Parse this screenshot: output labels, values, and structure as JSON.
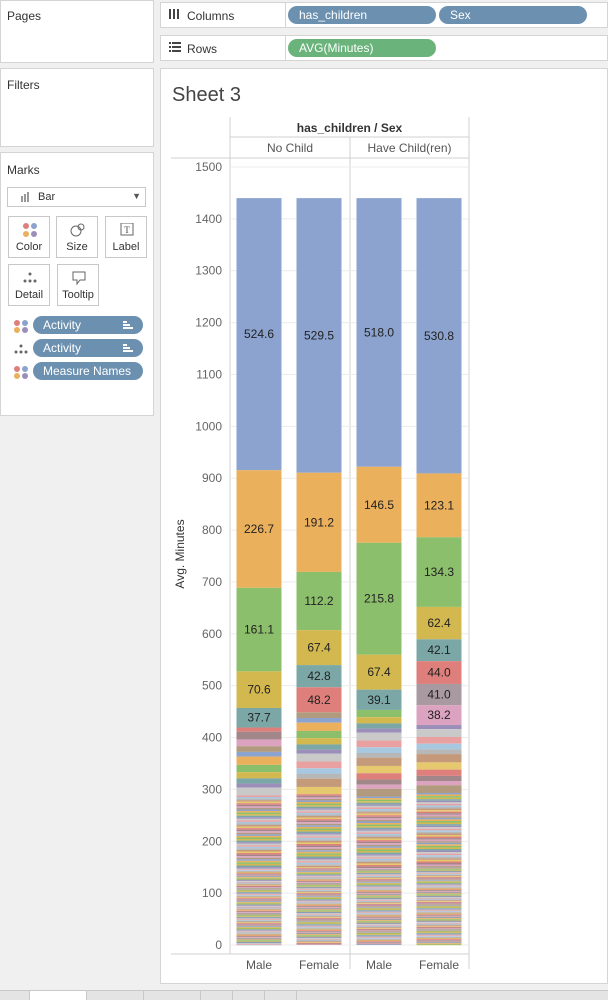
{
  "pages": {
    "title": "Pages"
  },
  "filters": {
    "title": "Filters"
  },
  "marks": {
    "title": "Marks",
    "mark_type": "Bar",
    "buttons": {
      "color": "Color",
      "size": "Size",
      "label": "Label",
      "detail": "Detail",
      "tooltip": "Tooltip"
    },
    "pills": [
      {
        "label": "Activity",
        "icon": "color-dots-icon"
      },
      {
        "label": "Activity",
        "icon": "detail-dots-icon"
      },
      {
        "label": "Measure Names",
        "icon": "color-dots-icon"
      }
    ]
  },
  "shelves": {
    "columns": {
      "label": "Columns",
      "pills": [
        "has_children",
        "Sex"
      ]
    },
    "rows": {
      "label": "Rows",
      "pills": [
        "AVG(Minutes)"
      ]
    }
  },
  "colors": {
    "dimension_pill": "#6b90b0",
    "measure_pill": "#6ab37b"
  },
  "sheet": {
    "title": "Sheet 3"
  },
  "chart_data": {
    "type": "bar",
    "stacked": true,
    "title": "",
    "header_title": "has_children / Sex",
    "column_groups": [
      "No Child",
      "Have Child(ren)"
    ],
    "categories": [
      "Male",
      "Female",
      "Male",
      "Female"
    ],
    "ylabel": "Avg. Minutes",
    "ylim": [
      0,
      1500
    ],
    "yticks": [
      0,
      100,
      200,
      300,
      400,
      500,
      600,
      700,
      800,
      900,
      1000,
      1100,
      1200,
      1300,
      1400,
      1500
    ],
    "total": 1440,
    "labeled_segments": [
      [
        {
          "value": 524.6,
          "color": "#8ba3ce",
          "label": "524.6"
        },
        {
          "value": 226.7,
          "color": "#ebb05c",
          "label": "226.7"
        },
        {
          "value": 161.1,
          "color": "#8cbf6b",
          "label": "161.1"
        },
        {
          "value": 70.6,
          "color": "#d2b84f",
          "label": "70.6"
        },
        {
          "value": 37.7,
          "color": "#7ba8a7",
          "label": "37.7"
        }
      ],
      [
        {
          "value": 529.5,
          "color": "#8ba3ce",
          "label": "529.5"
        },
        {
          "value": 191.2,
          "color": "#ebb05c",
          "label": "191.2"
        },
        {
          "value": 112.2,
          "color": "#8cbf6b",
          "label": "112.2"
        },
        {
          "value": 67.4,
          "color": "#d2b84f",
          "label": "67.4"
        },
        {
          "value": 42.8,
          "color": "#7ba8a7",
          "label": "42.8"
        },
        {
          "value": 48.2,
          "color": "#df7f7b",
          "label": "48.2"
        }
      ],
      [
        {
          "value": 518.0,
          "color": "#8ba3ce",
          "label": "518.0"
        },
        {
          "value": 146.5,
          "color": "#ebb05c",
          "label": "146.5"
        },
        {
          "value": 215.8,
          "color": "#8cbf6b",
          "label": "215.8"
        },
        {
          "value": 67.4,
          "color": "#d2b84f",
          "label": "67.4"
        },
        {
          "value": 39.1,
          "color": "#7ba8a7",
          "label": "39.1"
        }
      ],
      [
        {
          "value": 530.8,
          "color": "#8ba3ce",
          "label": "530.8"
        },
        {
          "value": 123.1,
          "color": "#ebb05c",
          "label": "123.1"
        },
        {
          "value": 134.3,
          "color": "#8cbf6b",
          "label": "134.3"
        },
        {
          "value": 62.4,
          "color": "#d2b84f",
          "label": "62.4"
        },
        {
          "value": 42.1,
          "color": "#7ba8a7",
          "label": "42.1"
        },
        {
          "value": 44.0,
          "color": "#df7f7b",
          "label": "44.0"
        },
        {
          "value": 41.0,
          "color": "#a99aa1",
          "label": "41.0"
        },
        {
          "value": 38.2,
          "color": "#dba3c0",
          "label": "38.2"
        }
      ]
    ],
    "unlabeled_palette": [
      "#df7f7b",
      "#a1878a",
      "#dba3c0",
      "#b19a7d",
      "#8ba3ce",
      "#ebb05c",
      "#8cbf6b",
      "#d2b84f",
      "#7ba8a7",
      "#9b8fb9",
      "#c9c9c9",
      "#e8a0a0",
      "#a8c8e0",
      "#b7b7b7",
      "#c49a7b",
      "#e6c86e"
    ]
  }
}
